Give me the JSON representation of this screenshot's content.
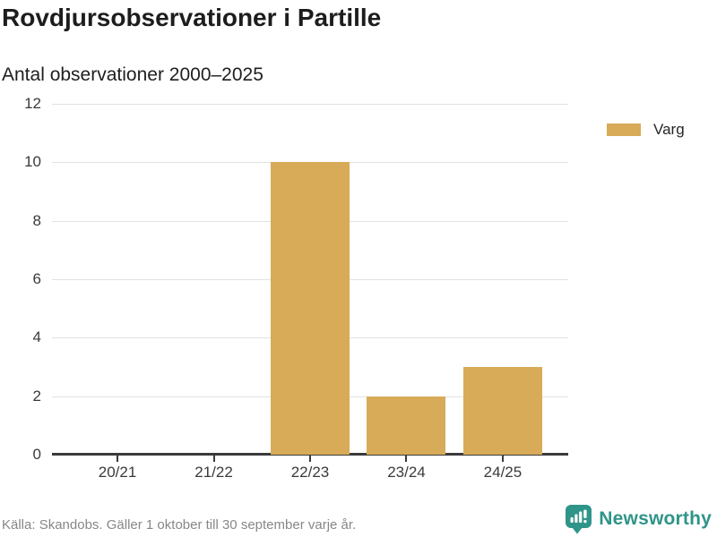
{
  "header": {
    "title": "Rovdjursobservationer i Partille",
    "subtitle": "Antal observationer 2000–2025"
  },
  "chart_data": {
    "type": "bar",
    "title": "Rovdjursobservationer i Partille",
    "subtitle": "Antal observationer 2000–2025",
    "categories": [
      "20/21",
      "21/22",
      "22/23",
      "23/24",
      "24/25"
    ],
    "series": [
      {
        "name": "Varg",
        "values": [
          0,
          0,
          10,
          2,
          3
        ]
      }
    ],
    "xlabel": "",
    "ylabel": "",
    "ylim": [
      0,
      12
    ],
    "yticks": [
      0,
      2,
      4,
      6,
      8,
      10,
      12
    ],
    "grid": true,
    "legend_position": "top-right",
    "colors": {
      "bar": "#d8ab58",
      "gridline": "#e2e2e2",
      "axis": "#3b3b3b"
    }
  },
  "legend": {
    "items": [
      {
        "label": "Varg",
        "color": "#d8ab58"
      }
    ]
  },
  "footer": {
    "source": "Källa: Skandobs. Gäller 1 oktober till 30 september varje år.",
    "brand": "Newsworthy",
    "brand_color": "#2f9489"
  }
}
